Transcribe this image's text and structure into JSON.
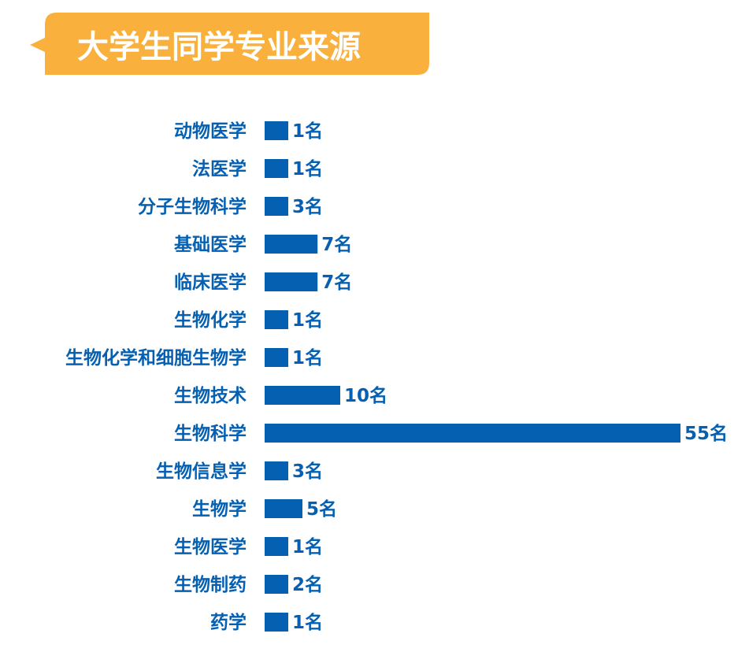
{
  "title": "大学生同学专业来源",
  "colors": {
    "banner": "#F9B03D",
    "bar": "#0660B2",
    "text": "#0660B2"
  },
  "unit_suffix": "名",
  "chart_data": {
    "type": "bar",
    "orientation": "horizontal",
    "title": "大学生同学专业来源",
    "xlabel": "",
    "ylabel": "",
    "categories": [
      "动物医学",
      "法医学",
      "分子生物科学",
      "基础医学",
      "临床医学",
      "生物化学",
      "生物化学和细胞生物学",
      "生物技术",
      "生物科学",
      "生物信息学",
      "生物学",
      "生物医学",
      "生物制药",
      "药学"
    ],
    "values": [
      1,
      1,
      3,
      7,
      7,
      1,
      1,
      10,
      55,
      3,
      5,
      1,
      2,
      1
    ],
    "value_labels": [
      "1名",
      "1名",
      "3名",
      "7名",
      "7名",
      "1名",
      "1名",
      "10名",
      "55名",
      "3名",
      "5名",
      "1名",
      "2名",
      "1名"
    ],
    "xlim": [
      0,
      55
    ],
    "grid": false,
    "legend": "none"
  }
}
